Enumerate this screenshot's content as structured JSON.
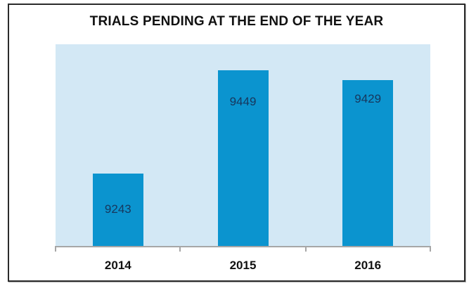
{
  "chart_data": {
    "type": "bar",
    "title": "TRIALS PENDING AT THE END OF THE YEAR",
    "categories": [
      "2014",
      "2015",
      "2016"
    ],
    "values": [
      9243,
      9449,
      9429
    ],
    "data_labels_shown": true,
    "xlabel": "",
    "ylabel": "",
    "ylim": [
      9100,
      9500
    ],
    "grid": false,
    "legend": false
  },
  "colors": {
    "bar_fill": "#0b94cf",
    "plot_background": "#d3e8f5",
    "data_label_text": "#17375d",
    "axis_line": "#a6a6a6",
    "title_text": "#111111",
    "frame_border": "#2b2b2b",
    "page_background": "#ffffff"
  }
}
